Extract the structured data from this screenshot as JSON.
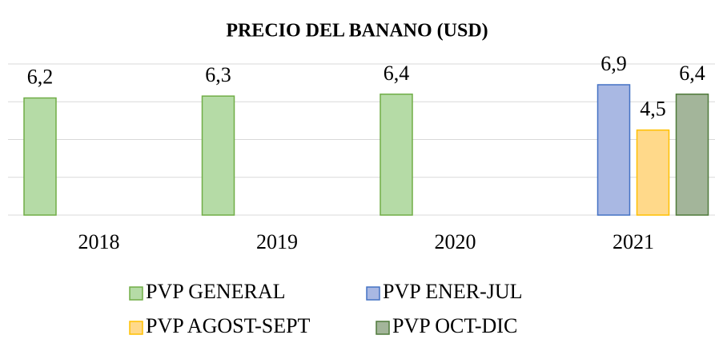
{
  "chart_data": {
    "type": "bar",
    "title": "PRECIO DEL BANANO (USD)",
    "categories": [
      "2018",
      "2019",
      "2020",
      "2021"
    ],
    "series": [
      {
        "name": "PVP GENERAL",
        "color": "#b5dba6",
        "stroke": "#70ad47",
        "values": [
          6.2,
          6.3,
          6.4,
          null
        ],
        "value_labels": [
          "6,2",
          "6,3",
          "6,4",
          null
        ]
      },
      {
        "name": "PVP ENER-JUL",
        "color": "#a9b8e3",
        "stroke": "#4472c4",
        "values": [
          null,
          null,
          null,
          6.9
        ],
        "value_labels": [
          null,
          null,
          null,
          "6,9"
        ]
      },
      {
        "name": "PVP AGOST-SEPT",
        "color": "#ffd98a",
        "stroke": "#ffc000",
        "values": [
          null,
          null,
          null,
          4.5
        ],
        "value_labels": [
          null,
          null,
          null,
          "4,5"
        ]
      },
      {
        "name": "PVP OCT-DIC",
        "color": "#a3b59a",
        "stroke": "#4f7a3a",
        "values": [
          null,
          null,
          null,
          6.4
        ],
        "value_labels": [
          null,
          null,
          null,
          "6,4"
        ]
      }
    ],
    "ylim": [
      0,
      8
    ],
    "yticks": [
      0,
      2,
      4,
      6,
      8
    ],
    "grid": true
  }
}
